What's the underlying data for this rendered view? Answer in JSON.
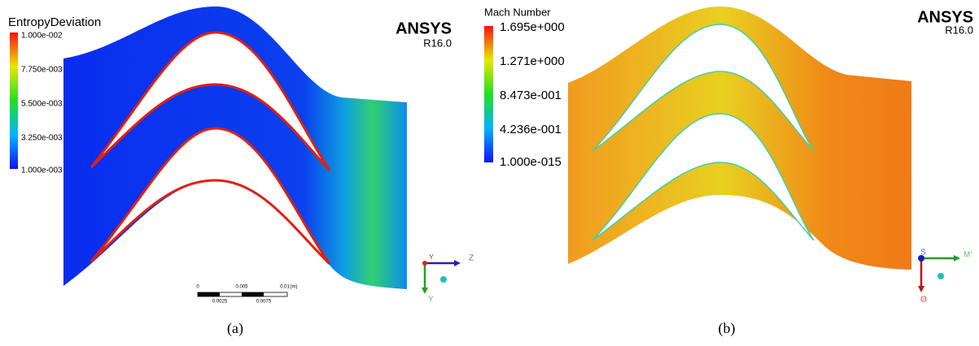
{
  "panels": [
    {
      "legend_title": "EntropyDeviation",
      "legend_ticks": [
        "1.000e-002",
        "7.750e-003",
        "5.500e-003",
        "3.250e-003",
        "1.000e-003"
      ],
      "logo": "ANSYS",
      "version": "R16.0",
      "scale_labels_top": [
        "0",
        "0.005",
        "0.01",
        "(m)"
      ],
      "scale_labels_bottom": [
        "0.0025",
        "0.0075"
      ],
      "axis_labels": [
        "Y",
        "Z",
        "Y"
      ],
      "caption": "(a)"
    },
    {
      "legend_title": "Mach Number",
      "legend_ticks": [
        "1.695e+000",
        "1.271e+000",
        "8.473e-001",
        "4.236e-001",
        "1.000e-015"
      ],
      "logo": "ANSYS",
      "version": "R16.0",
      "axis_labels": [
        "S",
        "M'",
        "Θ"
      ],
      "caption": "(b)"
    }
  ]
}
